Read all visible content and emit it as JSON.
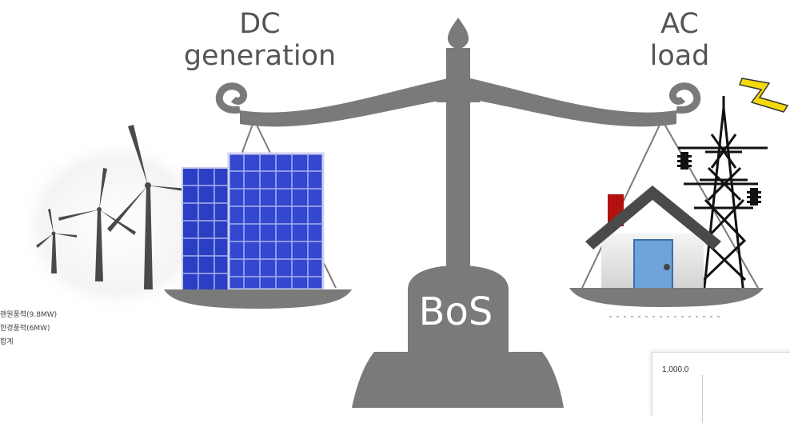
{
  "diagram": {
    "left_title": "DC\ngeneration",
    "right_title": "AC\nload",
    "center_label": "BoS"
  },
  "legend": {
    "items": [
      "랜원풍력(9.8MW)",
      "한경풍력(6MW)",
      "합계"
    ]
  },
  "mini_chart": {
    "top_tick_label": "1,000.0"
  },
  "icons": {
    "left_pan": [
      "wind-turbine-icon",
      "solar-panel-icon"
    ],
    "right_pan": [
      "house-icon",
      "transmission-tower-icon",
      "lightning-bolt-icon"
    ]
  },
  "colors": {
    "scale": "#7a7a7a",
    "solar": "#2b3fc4",
    "lightning": "#f5d90a",
    "chimney": "#b3110f",
    "door": "#6ea3dc"
  }
}
